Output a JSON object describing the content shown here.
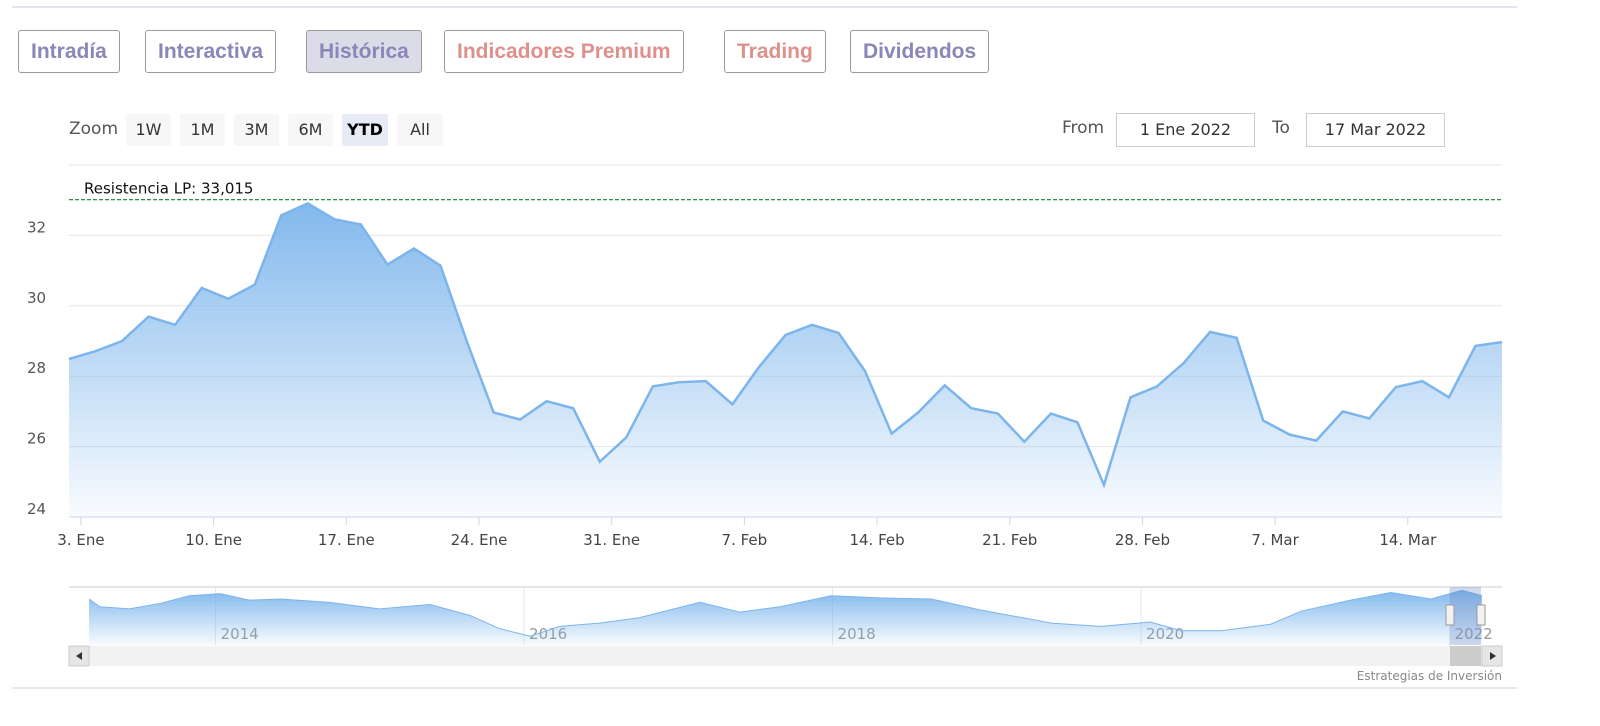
{
  "tabs": [
    {
      "label": "Intradía",
      "color": "#8a86b8"
    },
    {
      "label": "Interactiva",
      "color": "#8a86b8"
    },
    {
      "label": "Histórica",
      "color": "#8a86b8",
      "selected": true
    },
    {
      "label": "Indicadores Premium",
      "color": "#e0908a"
    },
    {
      "label": "Trading",
      "color": "#e0908a"
    },
    {
      "label": "Dividendos",
      "color": "#8a86b8"
    }
  ],
  "zoom": {
    "label": "Zoom",
    "buttons": [
      {
        "label": "1W"
      },
      {
        "label": "1M"
      },
      {
        "label": "3M"
      },
      {
        "label": "6M"
      },
      {
        "label": "YTD",
        "selected": true
      },
      {
        "label": "All"
      }
    ]
  },
  "range": {
    "from_label": "From",
    "from": "1 Ene 2022",
    "to_label": "To",
    "to": "17 Mar 2022"
  },
  "chart_data": [
    {
      "type": "area",
      "color": "#7cb5ec",
      "categories": [
        "3. Ene",
        null,
        null,
        null,
        null,
        "10. Ene",
        null,
        null,
        null,
        null,
        "17. Ene",
        null,
        null,
        null,
        null,
        "24. Ene",
        null,
        null,
        null,
        null,
        "31. Ene",
        null,
        null,
        null,
        null,
        "7. Feb",
        null,
        null,
        null,
        null,
        "14. Feb",
        null,
        null,
        null,
        null,
        "21. Feb",
        null,
        null,
        null,
        null,
        "28. Feb",
        null,
        null,
        null,
        null,
        "7. Mar",
        null,
        null,
        null,
        null,
        "14. Mar",
        null,
        null,
        null,
        null
      ],
      "values": [
        28.49,
        28.71,
        29.0,
        29.69,
        29.46,
        30.51,
        30.2,
        30.6,
        32.57,
        32.91,
        32.46,
        32.31,
        31.17,
        31.63,
        31.14,
        28.97,
        26.97,
        26.77,
        27.29,
        27.09,
        25.57,
        26.26,
        27.71,
        27.83,
        27.86,
        27.2,
        28.26,
        29.17,
        29.46,
        29.23,
        28.14,
        26.37,
        26.97,
        27.74,
        27.09,
        26.94,
        26.14,
        26.94,
        26.69,
        24.91,
        27.4,
        27.71,
        28.37,
        29.26,
        29.09,
        26.74,
        26.34,
        26.17,
        27.0,
        26.8,
        27.69,
        27.86,
        27.4,
        28.86,
        28.97
      ],
      "ylim": [
        24,
        34
      ],
      "yticks": [
        24,
        26,
        28,
        30,
        32
      ],
      "grid": true,
      "annotation": {
        "label": "Resistencia LP: 33,015",
        "value": 33.015,
        "color": "#1a7a3a"
      }
    },
    {
      "type": "navigator",
      "color": "#7cb5ec",
      "x": [
        2013.18,
        2013.25,
        2013.44,
        2013.64,
        2013.83,
        2014.03,
        2014.22,
        2014.42,
        2014.74,
        2015.06,
        2015.39,
        2015.65,
        2015.84,
        2016.04,
        2016.23,
        2016.49,
        2016.75,
        2017.14,
        2017.4,
        2017.66,
        2017.99,
        2018.31,
        2018.64,
        2018.96,
        2019.42,
        2019.74,
        2020.06,
        2020.26,
        2020.52,
        2020.84,
        2021.04,
        2021.36,
        2021.62,
        2021.88,
        2022.08,
        2022.21
      ],
      "values": [
        31.51,
        29.92,
        29.47,
        30.6,
        32.19,
        32.64,
        31.28,
        31.51,
        30.83,
        29.47,
        30.38,
        28.11,
        25.4,
        23.81,
        25.85,
        26.53,
        27.66,
        30.83,
        28.79,
        29.92,
        32.19,
        31.74,
        31.51,
        29.25,
        26.53,
        25.85,
        26.75,
        24.94,
        24.94,
        26.3,
        29.02,
        31.28,
        32.87,
        31.51,
        33.32,
        32.19
      ],
      "xlim": [
        2013.05,
        2022.34
      ],
      "ylim": [
        22,
        34
      ],
      "xticks": [
        2014,
        2016,
        2018,
        2020,
        2022
      ],
      "grid": true
    }
  ],
  "credits": "Estrategias de Inversión"
}
